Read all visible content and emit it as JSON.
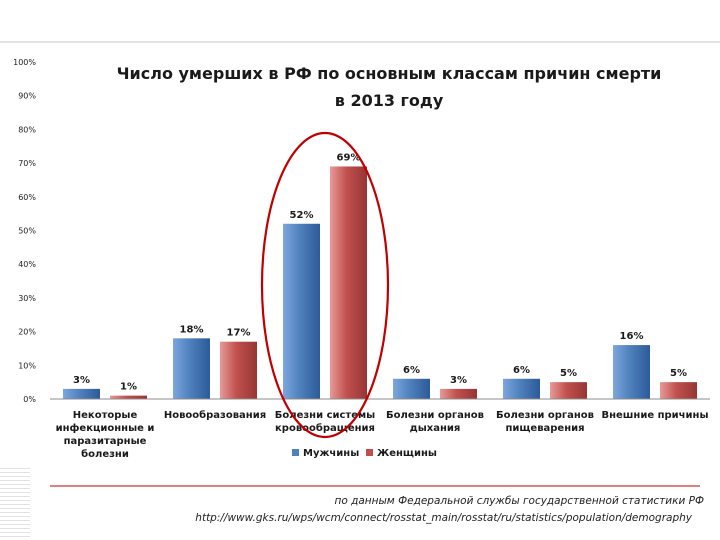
{
  "chart_data": {
    "type": "bar",
    "title": [
      "Число умерших в РФ по основным классам причин смерти",
      "в 2013 году"
    ],
    "categories": [
      [
        "Некоторые",
        "инфекционные и",
        "паразитарные",
        "болезни"
      ],
      [
        "Новообразования"
      ],
      [
        "Болезни системы",
        "кровообращения"
      ],
      [
        "Болезни органов",
        "дыхания"
      ],
      [
        "Болезни органов",
        "пищеварения"
      ],
      [
        "Внешние причины"
      ]
    ],
    "series": [
      {
        "name": "Мужчины",
        "values": [
          3,
          18,
          52,
          6,
          6,
          16
        ],
        "color": "#4472c4"
      },
      {
        "name": "Женщины",
        "values": [
          1,
          17,
          69,
          3,
          5,
          5
        ],
        "color": "#c0504d"
      }
    ],
    "data_labels": [
      [
        "3%",
        "18%",
        "52%",
        "6%",
        "6%",
        "16%"
      ],
      [
        "1%",
        "17%",
        "69%",
        "3%",
        "5%",
        "5%"
      ]
    ],
    "yticks": [
      "0%",
      "10%",
      "20%",
      "30%",
      "40%",
      "50%",
      "60%",
      "70%",
      "80%",
      "90%",
      "100%"
    ],
    "ylim": [
      0,
      100
    ],
    "legend_position": "bottom",
    "grid": false,
    "highlight": {
      "shape": "ellipse",
      "category_index": 2,
      "color": "#c00000"
    }
  },
  "source": {
    "line1": "по данным Федеральной службы государственной статистики РФ",
    "line2": "http://www.gks.ru/wps/wcm/connect/rosstat_main/rosstat/ru/statistics/population/demography"
  }
}
